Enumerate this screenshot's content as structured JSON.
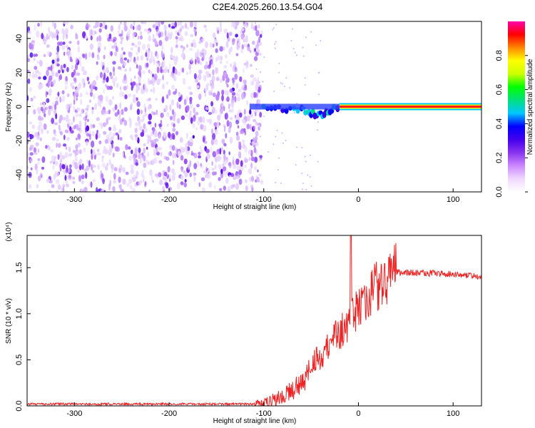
{
  "figure_title": "C2E4.2025.260.13.54.G04",
  "chart_data": [
    {
      "type": "heatmap",
      "panel": "top",
      "title": "",
      "xlabel": "Height of straight line (km)",
      "ylabel": "Frequency (Hz)",
      "xlim": [
        -350,
        130
      ],
      "ylim": [
        -50,
        50
      ],
      "xticks": [
        -300,
        -200,
        -100,
        0,
        100
      ],
      "yticks": [
        -40,
        -20,
        0,
        20,
        40
      ],
      "colorbar": {
        "label": "Normalized spectral amplitude",
        "range": [
          0.0,
          1.0
        ],
        "ticks": [
          "0.0",
          "0.2",
          "0.4",
          "0.6",
          "0.8"
        ],
        "colors": [
          "#ffffff",
          "#f0d8ff",
          "#cc88ff",
          "#8833ee",
          "#4400ee",
          "#0000ff",
          "#00c8ff",
          "#00e080",
          "#00ff00",
          "#ccff00",
          "#ffff00",
          "#ff8800",
          "#ff0000",
          "#ff00aa"
        ]
      },
      "features": {
        "noise_region_km": [
          -350,
          -110
        ],
        "noise_dense_until_km": -110,
        "carrier_frequency_hz": 0,
        "carrier_start_km": -115,
        "carrier_strong_from_km": -20,
        "descending_track": {
          "x": [
            -100,
            -60,
            -40,
            -20
          ],
          "y": [
            0,
            -2,
            -5,
            0
          ]
        }
      }
    },
    {
      "type": "line",
      "panel": "bottom",
      "title": "",
      "xlabel": "Height of straight line (km)",
      "ylabel": "SNR (10 * v/v)",
      "y_multiplier": "(x10⁴)",
      "xlim": [
        -350,
        130
      ],
      "ylim": [
        0,
        1.85
      ],
      "xticks": [
        -300,
        -200,
        -100,
        0,
        100
      ],
      "yticks": [
        "0.0",
        "0.5",
        "1.0",
        "1.5"
      ],
      "series": [
        {
          "color": "#ee2222",
          "x": [
            -350,
            -300,
            -250,
            -200,
            -150,
            -100,
            -90,
            -80,
            -70,
            -60,
            -50,
            -40,
            -30,
            -20,
            -10,
            0,
            10,
            20,
            30,
            40,
            50,
            60,
            70,
            80,
            90,
            100,
            110,
            120,
            130
          ],
          "y": [
            0.02,
            0.02,
            0.02,
            0.02,
            0.02,
            0.02,
            0.06,
            0.12,
            0.15,
            0.25,
            0.4,
            0.55,
            0.7,
            0.78,
            0.88,
            1.05,
            1.2,
            1.3,
            1.4,
            1.45,
            1.45,
            1.44,
            1.44,
            1.44,
            1.43,
            1.43,
            1.42,
            1.41,
            1.4
          ],
          "spike": {
            "x": -8,
            "y": 1.85
          }
        }
      ]
    }
  ]
}
